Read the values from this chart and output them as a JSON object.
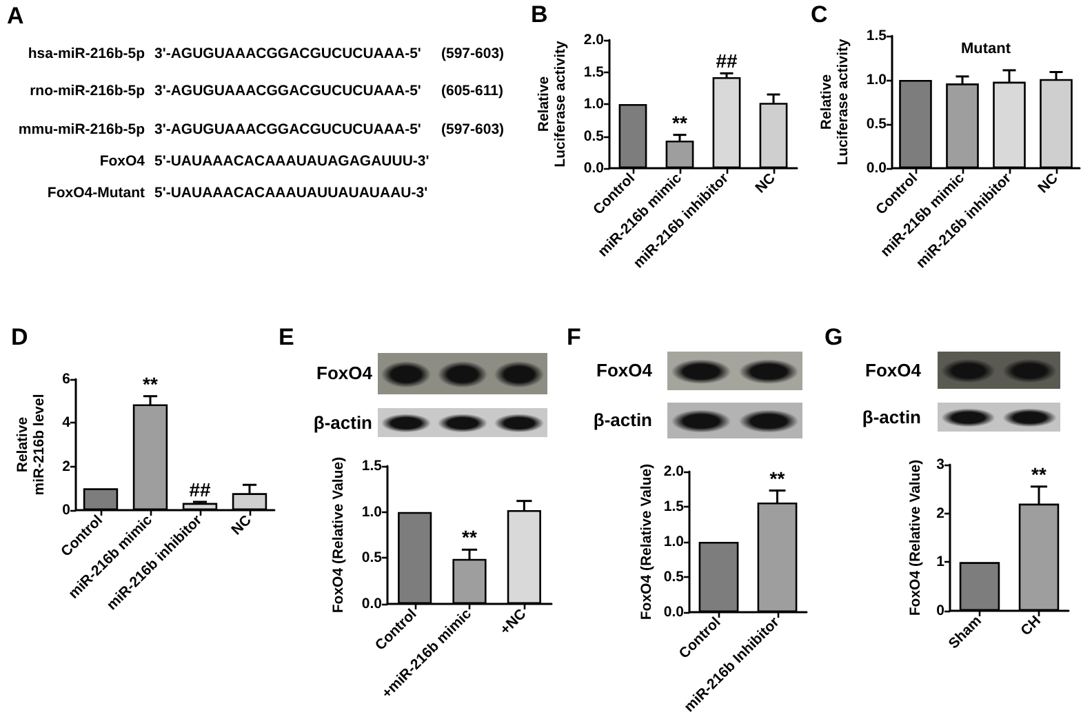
{
  "chart_data": [
    {
      "type": "other",
      "title": "A",
      "annotations": [
        "hsa-miR-216b-5p 3'-AGUGUAAACGGACGUCUCUAAA-5' (597-603)",
        "rno-miR-216b-5p 3'-AGUGUAAACGGACGUCUCUAAA-5' (605-611)",
        "mmu-miR-216b-5p 3'-AGUGUAAACGGACGUCUCUAAA-5' (597-603)",
        "FoxO4 5'-UAUAAACACAAAUAUAGAGAUUU-3'",
        "FoxO4-Mutant 5'-UAUAAACACAAAUAUUAUAUAAU-3'"
      ]
    },
    {
      "type": "bar",
      "title": "B",
      "ylabel": "Relative\nLuciferase activity",
      "categories": [
        "Control",
        "miR-216b mimic",
        "miR-216b inhibitor",
        "NC"
      ],
      "values": [
        1.0,
        0.43,
        1.42,
        1.02
      ],
      "errors": [
        null,
        0.09,
        0.06,
        0.13
      ],
      "colors": [
        "#7d7d7d",
        "#9e9e9e",
        "#d9d9d9",
        "#cfcfcf"
      ],
      "ylim": [
        0,
        2
      ],
      "yticks": [
        {
          "value": 0,
          "label": "0.0"
        },
        0.5,
        {
          "value": 1,
          "label": "1.0"
        },
        1.5,
        {
          "value": 2,
          "label": "2.0"
        }
      ],
      "annotations": [
        {
          "text": "**",
          "x": "miR-216b mimic",
          "y": 0.52
        },
        {
          "text": "##",
          "x": "miR-216b inhibitor",
          "y": 1.48
        }
      ]
    },
    {
      "type": "bar",
      "title": "C",
      "subtitle": "Mutant",
      "ylabel": "Relative\nLuciferase activity",
      "categories": [
        "Control",
        "miR-216b mimic",
        "miR-216b inhibitor",
        "NC"
      ],
      "values": [
        1.0,
        0.96,
        0.98,
        1.01
      ],
      "errors": [
        null,
        0.08,
        0.13,
        0.08
      ],
      "colors": [
        "#7d7d7d",
        "#9e9e9e",
        "#d9d9d9",
        "#cfcfcf"
      ],
      "ylim": [
        0,
        1.5
      ],
      "yticks": [
        {
          "value": 0,
          "label": "0.0"
        },
        0.5,
        {
          "value": 1,
          "label": "1.0"
        },
        1.5
      ]
    },
    {
      "type": "bar",
      "title": "D",
      "ylabel": "Relative\nmiR-216b level",
      "categories": [
        "Control",
        "miR-216b mimic",
        "miR-216b inhibitor",
        "NC"
      ],
      "values": [
        1.0,
        4.85,
        0.33,
        0.78
      ],
      "errors": [
        null,
        0.37,
        0.05,
        0.38
      ],
      "colors": [
        "#7d7d7d",
        "#9e9e9e",
        "#d9d9d9",
        "#cfcfcf"
      ],
      "ylim": [
        0,
        6
      ],
      "yticks": [
        0,
        2,
        4,
        6
      ],
      "annotations": [
        {
          "text": "**",
          "x": "miR-216b mimic",
          "y": 5.22
        },
        {
          "text": "##",
          "x": "miR-216b inhibitor",
          "y": 0.38
        }
      ]
    },
    {
      "type": "bar",
      "title": "E",
      "ylabel": "FoxO4 (Relative Value)",
      "categories": [
        "Control",
        "+miR-216b mimic",
        "+NC"
      ],
      "values": [
        1.0,
        0.49,
        1.02
      ],
      "errors": [
        null,
        0.1,
        0.1
      ],
      "colors": [
        "#7d7d7d",
        "#9e9e9e",
        "#d9d9d9"
      ],
      "ylim": [
        0,
        1.5
      ],
      "yticks": [
        {
          "value": 0,
          "label": "0.0"
        },
        0.5,
        {
          "value": 1,
          "label": "1.0"
        },
        1.5
      ],
      "annotations": [
        "FoxO4",
        "β-actin",
        {
          "text": "**",
          "x": "+miR-216b mimic",
          "y": 0.59
        }
      ]
    },
    {
      "type": "bar",
      "title": "F",
      "ylabel": "FoxO4 (Relative Value)",
      "categories": [
        "Control",
        "miR-216b Inhibitor"
      ],
      "values": [
        1.0,
        1.56
      ],
      "errors": [
        null,
        0.17
      ],
      "colors": [
        "#7d7d7d",
        "#9e9e9e"
      ],
      "ylim": [
        0,
        2
      ],
      "yticks": [
        {
          "value": 0,
          "label": "0.0"
        },
        0.5,
        {
          "value": 1,
          "label": "1.0"
        },
        1.5,
        {
          "value": 2,
          "label": "2.0"
        }
      ],
      "annotations": [
        "FoxO4",
        "β-actin",
        {
          "text": "**",
          "x": "miR-216b Inhibitor",
          "y": 1.73
        }
      ]
    },
    {
      "type": "bar",
      "title": "G",
      "ylabel": "FoxO4 (Relative Value)",
      "categories": [
        "Sham",
        "CH"
      ],
      "values": [
        1.0,
        2.2
      ],
      "errors": [
        null,
        0.35
      ],
      "colors": [
        "#7d7d7d",
        "#9e9e9e"
      ],
      "ylim": [
        0,
        3
      ],
      "yticks": [
        0,
        1,
        2,
        3
      ],
      "annotations": [
        "FoxO4",
        "β-actin",
        {
          "text": "**",
          "x": "CH",
          "y": 2.55
        }
      ]
    }
  ]
}
